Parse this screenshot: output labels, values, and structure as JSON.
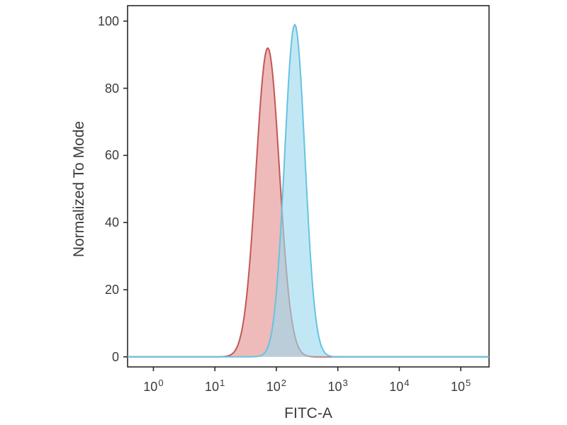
{
  "figure": {
    "background": "#ffffff",
    "border_color": "#2a2a2a",
    "text_color": "#3b3b3b"
  },
  "chart_data": {
    "type": "area",
    "chart_kind": "flow-cytometry-histogram",
    "title": "",
    "xlabel": "FITC-A",
    "ylabel": "Normalized To Mode",
    "x_scale": "log10",
    "x_tick_base": "10",
    "x_tick_exponents": [
      0,
      1,
      2,
      3,
      4,
      5
    ],
    "x_domain_log10": [
      -0.42,
      5.46
    ],
    "y_ticks": [
      0,
      20,
      40,
      60,
      80,
      100
    ],
    "y_domain": [
      -3,
      104.6
    ],
    "baseline_y": 0,
    "grid": false,
    "legend": "none",
    "series": [
      {
        "name": "red-population",
        "fill": "#e58f8f",
        "fill_opacity": 0.62,
        "stroke": "#c25757",
        "stroke_width": 2,
        "gaussian": {
          "mu_log10": 1.86,
          "sigma_log10": 0.19,
          "amplitude": 92
        },
        "peak": {
          "x": 72,
          "y": 92
        },
        "points_log10x_y": [
          [
            1.1,
            0.0
          ],
          [
            1.2,
            0.2
          ],
          [
            1.3,
            1.2
          ],
          [
            1.4,
            4.9
          ],
          [
            1.5,
            15.3
          ],
          [
            1.6,
            36.1
          ],
          [
            1.7,
            64.6
          ],
          [
            1.8,
            87.5
          ],
          [
            1.86,
            92.0
          ],
          [
            1.9,
            90.0
          ],
          [
            2.0,
            70.1
          ],
          [
            2.1,
            41.4
          ],
          [
            2.2,
            18.6
          ],
          [
            2.3,
            6.3
          ],
          [
            2.4,
            1.6
          ],
          [
            2.5,
            0.3
          ],
          [
            2.6,
            0.0
          ]
        ]
      },
      {
        "name": "blue-population",
        "fill": "#9cd9ee",
        "fill_opacity": 0.62,
        "stroke": "#66c3e0",
        "stroke_width": 2,
        "gaussian": {
          "mu_log10": 2.3,
          "sigma_log10": 0.165,
          "amplitude": 99
        },
        "peak": {
          "x": 200,
          "y": 99
        },
        "points_log10x_y": [
          [
            1.8,
            1.0
          ],
          [
            1.9,
            5.2
          ],
          [
            2.0,
            18.9
          ],
          [
            2.1,
            47.5
          ],
          [
            2.2,
            82.4
          ],
          [
            2.3,
            99.0
          ],
          [
            2.4,
            82.4
          ],
          [
            2.5,
            47.5
          ],
          [
            2.6,
            18.9
          ],
          [
            2.7,
            5.2
          ],
          [
            2.8,
            1.0
          ],
          [
            2.9,
            0.1
          ],
          [
            3.0,
            0.0
          ]
        ]
      }
    ]
  }
}
